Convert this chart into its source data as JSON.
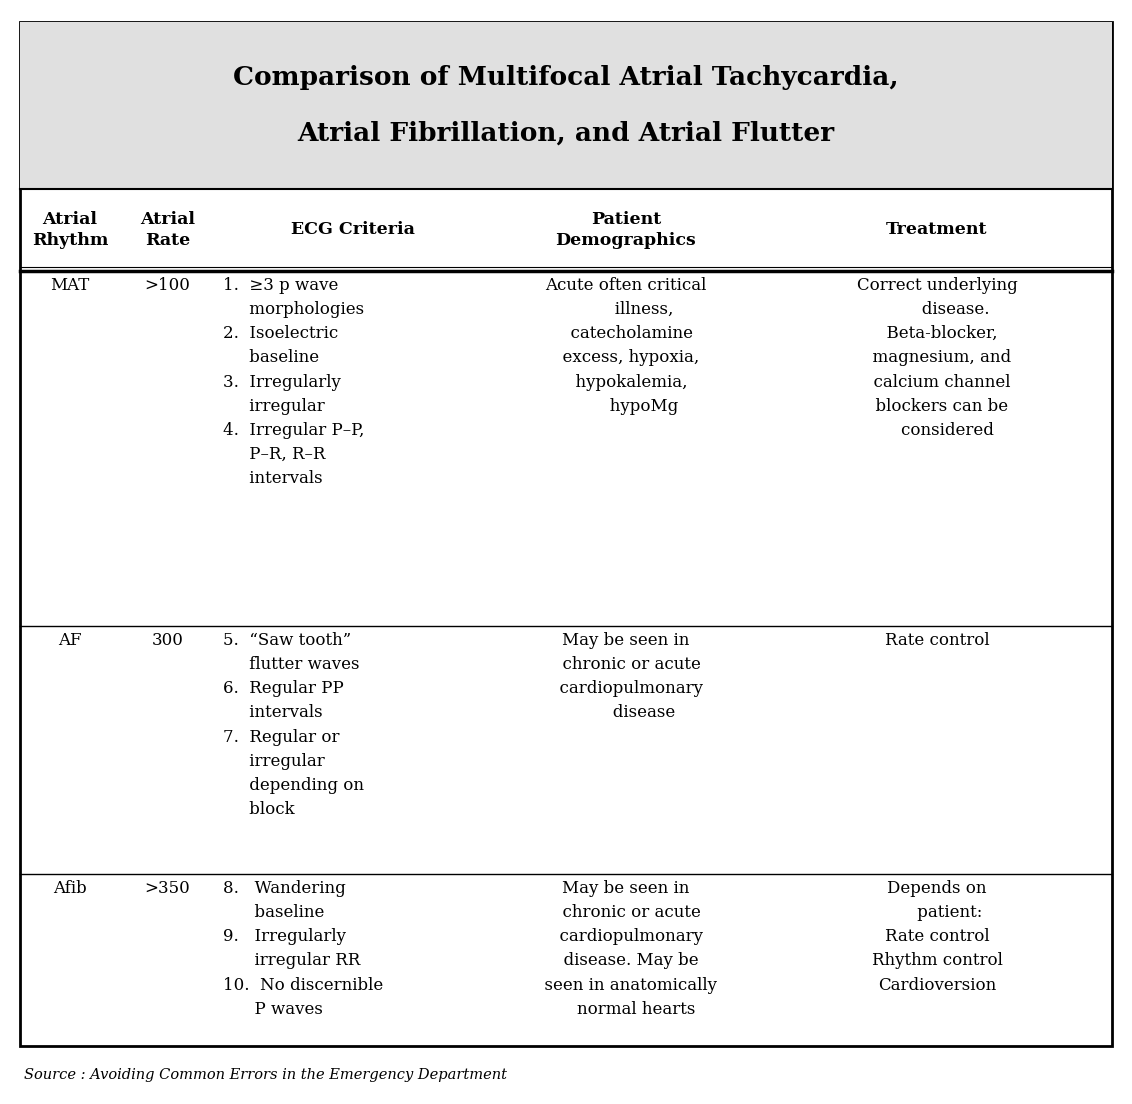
{
  "title_line1": "Comparison of Multifocal Atrial Tachycardia,",
  "title_line2": "Atrial Fibrillation, and Atrial Flutter",
  "title_bg": "#e0e0e0",
  "source_text": "Source : Avoiding Common Errors in the Emergency Department",
  "fig_bg": "#ffffff",
  "border_color": "#000000",
  "col_headers_line1": [
    "Atrial",
    "Atrial",
    "ECG Criteria",
    "Patient",
    "Treatment"
  ],
  "col_headers_line2": [
    "Rhythm",
    "Rate",
    "",
    "Demographics",
    ""
  ],
  "rows": [
    {
      "rhythm": "MAT",
      "rate": ">100",
      "ecg_lines": [
        "1.  ≥3 p wave",
        "     morphologies",
        "2.  Isoelectric",
        "     baseline",
        "3.  Irregularly",
        "     irregular",
        "4.  Irregular P–P,",
        "     P–R, R–R",
        "     intervals"
      ],
      "demo_lines": [
        "Acute often critical",
        "       illness,",
        "  catecholamine",
        "  excess, hypoxia,",
        "  hypokalemia,",
        "       hypoMg"
      ],
      "treat_lines": [
        "Correct underlying",
        "       disease.",
        "  Beta-blocker,",
        "  magnesium, and",
        "  calcium channel",
        "  blockers can be",
        "    considered"
      ]
    },
    {
      "rhythm": "AF",
      "rate": "300",
      "ecg_lines": [
        "5.  “Saw tooth”",
        "     flutter waves",
        "6.  Regular PP",
        "     intervals",
        "7.  Regular or",
        "     irregular",
        "     depending on",
        "     block"
      ],
      "demo_lines": [
        "May be seen in",
        "  chronic or acute",
        "  cardiopulmonary",
        "       disease"
      ],
      "treat_lines": [
        "Rate control"
      ]
    },
    {
      "rhythm": "Afib",
      "rate": ">350",
      "ecg_lines": [
        "8.   Wandering",
        "      baseline",
        "9.   Irregularly",
        "      irregular RR",
        "10.  No discernible",
        "      P waves"
      ],
      "demo_lines": [
        "May be seen in",
        "  chronic or acute",
        "  cardiopulmonary",
        "  disease. May be",
        "  seen in anatomically",
        "    normal hearts"
      ],
      "treat_lines": [
        "Depends on",
        "     patient:",
        "Rate control",
        "Rhythm control",
        "Cardioversion"
      ]
    }
  ]
}
